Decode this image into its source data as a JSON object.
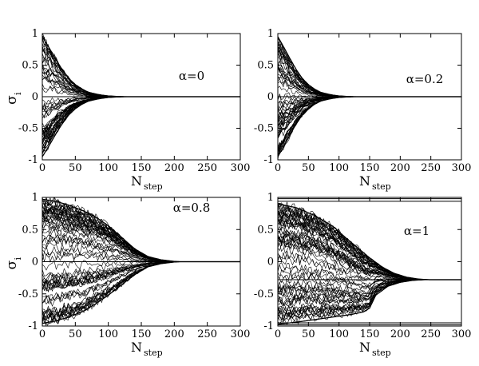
{
  "chart_data": [
    {
      "type": "line",
      "annotation": "α=0",
      "xlabel": "N",
      "xlabel_sub": "step",
      "ylabel": "σ",
      "ylabel_sub": "i",
      "xlim": [
        0,
        300
      ],
      "ylim": [
        -1,
        1
      ],
      "xticks": [
        "0",
        "50",
        "100",
        "150",
        "200",
        "250",
        "300"
      ],
      "yticks": [
        "-1",
        "-0.5",
        "0",
        "0.5",
        "1"
      ],
      "envelope_upper": [
        [
          0,
          0.95
        ],
        [
          10,
          0.78
        ],
        [
          20,
          0.6
        ],
        [
          30,
          0.43
        ],
        [
          40,
          0.29
        ],
        [
          50,
          0.19
        ],
        [
          60,
          0.12
        ],
        [
          70,
          0.07
        ],
        [
          80,
          0.045
        ],
        [
          90,
          0.025
        ],
        [
          100,
          0.012
        ],
        [
          110,
          0.006
        ],
        [
          120,
          0.003
        ],
        [
          130,
          0.0
        ],
        [
          300,
          0.0
        ]
      ],
      "envelope_lower": [
        [
          0,
          -0.95
        ],
        [
          10,
          -0.78
        ],
        [
          20,
          -0.6
        ],
        [
          30,
          -0.43
        ],
        [
          40,
          -0.29
        ],
        [
          50,
          -0.19
        ],
        [
          60,
          -0.12
        ],
        [
          70,
          -0.07
        ],
        [
          80,
          -0.045
        ],
        [
          90,
          -0.025
        ],
        [
          100,
          -0.012
        ],
        [
          110,
          -0.006
        ],
        [
          120,
          -0.003
        ],
        [
          130,
          0.0
        ],
        [
          300,
          0.0
        ]
      ],
      "final_value": 0.0
    },
    {
      "type": "line",
      "annotation": "α=0.2",
      "xlabel": "N",
      "xlabel_sub": "step",
      "ylabel": "",
      "ylabel_sub": "",
      "xlim": [
        0,
        300
      ],
      "ylim": [
        -1,
        1
      ],
      "xticks": [
        "0",
        "50",
        "100",
        "150",
        "200",
        "250",
        "300"
      ],
      "yticks": [
        "-1",
        "-0.5",
        "0",
        "0.5",
        "1"
      ],
      "envelope_upper": [
        [
          0,
          0.95
        ],
        [
          10,
          0.78
        ],
        [
          20,
          0.6
        ],
        [
          30,
          0.43
        ],
        [
          40,
          0.29
        ],
        [
          50,
          0.19
        ],
        [
          60,
          0.12
        ],
        [
          70,
          0.07
        ],
        [
          80,
          0.045
        ],
        [
          90,
          0.025
        ],
        [
          100,
          0.012
        ],
        [
          110,
          0.006
        ],
        [
          120,
          0.003
        ],
        [
          130,
          0.0
        ],
        [
          300,
          0.0
        ]
      ],
      "envelope_lower": [
        [
          0,
          -0.95
        ],
        [
          10,
          -0.78
        ],
        [
          20,
          -0.6
        ],
        [
          30,
          -0.43
        ],
        [
          40,
          -0.29
        ],
        [
          50,
          -0.19
        ],
        [
          60,
          -0.12
        ],
        [
          70,
          -0.07
        ],
        [
          80,
          -0.045
        ],
        [
          90,
          -0.025
        ],
        [
          100,
          -0.012
        ],
        [
          110,
          -0.006
        ],
        [
          120,
          -0.003
        ],
        [
          130,
          0.0
        ],
        [
          300,
          0.0
        ]
      ],
      "final_value": 0.0
    },
    {
      "type": "line",
      "annotation": "α=0.8",
      "xlabel": "N",
      "xlabel_sub": "step",
      "ylabel": "σ",
      "ylabel_sub": "i",
      "xlim": [
        0,
        300
      ],
      "ylim": [
        -1,
        1
      ],
      "xticks": [
        "0",
        "50",
        "100",
        "150",
        "200",
        "250",
        "300"
      ],
      "yticks": [
        "-1",
        "-0.5",
        "0",
        "0.5",
        "1"
      ],
      "envelope_upper": [
        [
          0,
          0.97
        ],
        [
          20,
          0.94
        ],
        [
          40,
          0.88
        ],
        [
          60,
          0.8
        ],
        [
          80,
          0.7
        ],
        [
          100,
          0.56
        ],
        [
          120,
          0.38
        ],
        [
          140,
          0.2
        ],
        [
          160,
          0.08
        ],
        [
          180,
          0.03
        ],
        [
          200,
          0.005
        ],
        [
          210,
          0.0
        ],
        [
          300,
          0.0
        ]
      ],
      "envelope_lower": [
        [
          0,
          -0.96
        ],
        [
          20,
          -0.92
        ],
        [
          40,
          -0.86
        ],
        [
          60,
          -0.78
        ],
        [
          80,
          -0.66
        ],
        [
          100,
          -0.52
        ],
        [
          120,
          -0.36
        ],
        [
          140,
          -0.2
        ],
        [
          160,
          -0.08
        ],
        [
          180,
          -0.03
        ],
        [
          200,
          -0.005
        ],
        [
          210,
          0.0
        ],
        [
          300,
          0.0
        ]
      ],
      "final_value": 0.0
    },
    {
      "type": "line",
      "annotation": "α=1",
      "xlabel": "N",
      "xlabel_sub": "step",
      "ylabel": "",
      "ylabel_sub": "",
      "xlim": [
        0,
        300
      ],
      "ylim": [
        -1,
        1
      ],
      "xticks": [
        "0",
        "50",
        "100",
        "150",
        "200",
        "250",
        "300"
      ],
      "yticks": [
        "-1",
        "-0.5",
        "0",
        "0.5",
        "1"
      ],
      "envelope_upper": [
        [
          0,
          0.9
        ],
        [
          30,
          0.84
        ],
        [
          60,
          0.72
        ],
        [
          90,
          0.55
        ],
        [
          110,
          0.38
        ],
        [
          130,
          0.22
        ],
        [
          150,
          0.06
        ],
        [
          170,
          -0.08
        ],
        [
          190,
          -0.18
        ],
        [
          210,
          -0.24
        ],
        [
          230,
          -0.27
        ],
        [
          250,
          -0.28
        ],
        [
          300,
          -0.28
        ]
      ],
      "envelope_lower": [
        [
          0,
          -0.97
        ],
        [
          30,
          -0.94
        ],
        [
          60,
          -0.9
        ],
        [
          90,
          -0.86
        ],
        [
          120,
          -0.82
        ],
        [
          140,
          -0.78
        ],
        [
          150,
          -0.72
        ],
        [
          160,
          -0.52
        ],
        [
          180,
          -0.38
        ],
        [
          200,
          -0.32
        ],
        [
          220,
          -0.29
        ],
        [
          240,
          -0.28
        ],
        [
          300,
          -0.28
        ]
      ],
      "final_value": -0.28,
      "stuck_lines": [
        0.98,
        0.94,
        -0.98,
        -0.95
      ]
    }
  ]
}
